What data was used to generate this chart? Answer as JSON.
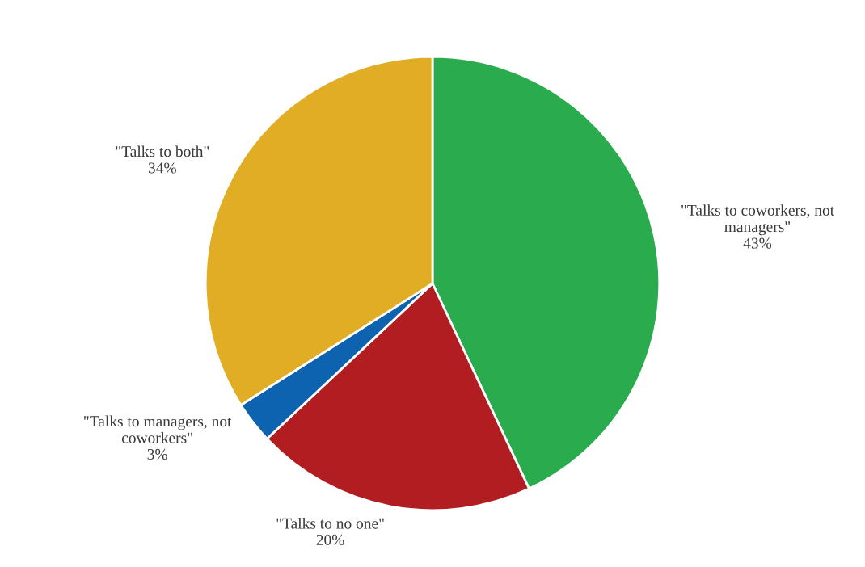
{
  "chart_data": {
    "type": "pie",
    "categories": [
      "\"Talks to coworkers, not managers\"",
      "\"Talks to no one\"",
      "\"Talks to managers, not coworkers\"",
      "\"Talks to both\""
    ],
    "values": [
      43,
      20,
      3,
      34
    ],
    "value_labels": [
      "43%",
      "20%",
      "3%",
      "34%"
    ],
    "colors": [
      "#2aab4e",
      "#b11d21",
      "#0d63b0",
      "#e0ad24"
    ]
  }
}
